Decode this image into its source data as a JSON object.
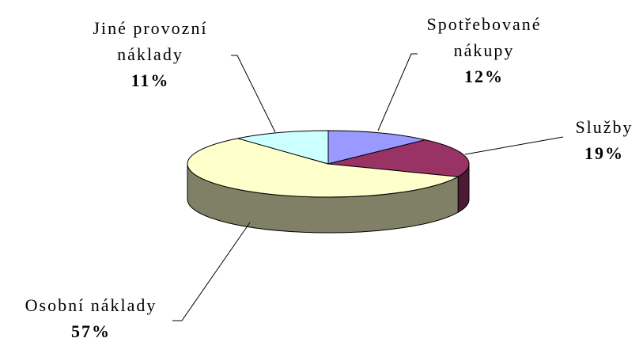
{
  "chart_data": {
    "type": "pie3d",
    "categories": [
      "Spotřebované\nnákupy",
      "Služby",
      "Osobní náklady",
      "Jiné provozní\nnáklady"
    ],
    "values": [
      12,
      19,
      57,
      11
    ],
    "value_labels": [
      "12%",
      "19%",
      "57%",
      "11%"
    ],
    "colors": [
      "#9999ff",
      "#993366",
      "#ffffcc",
      "#ccffff"
    ]
  }
}
